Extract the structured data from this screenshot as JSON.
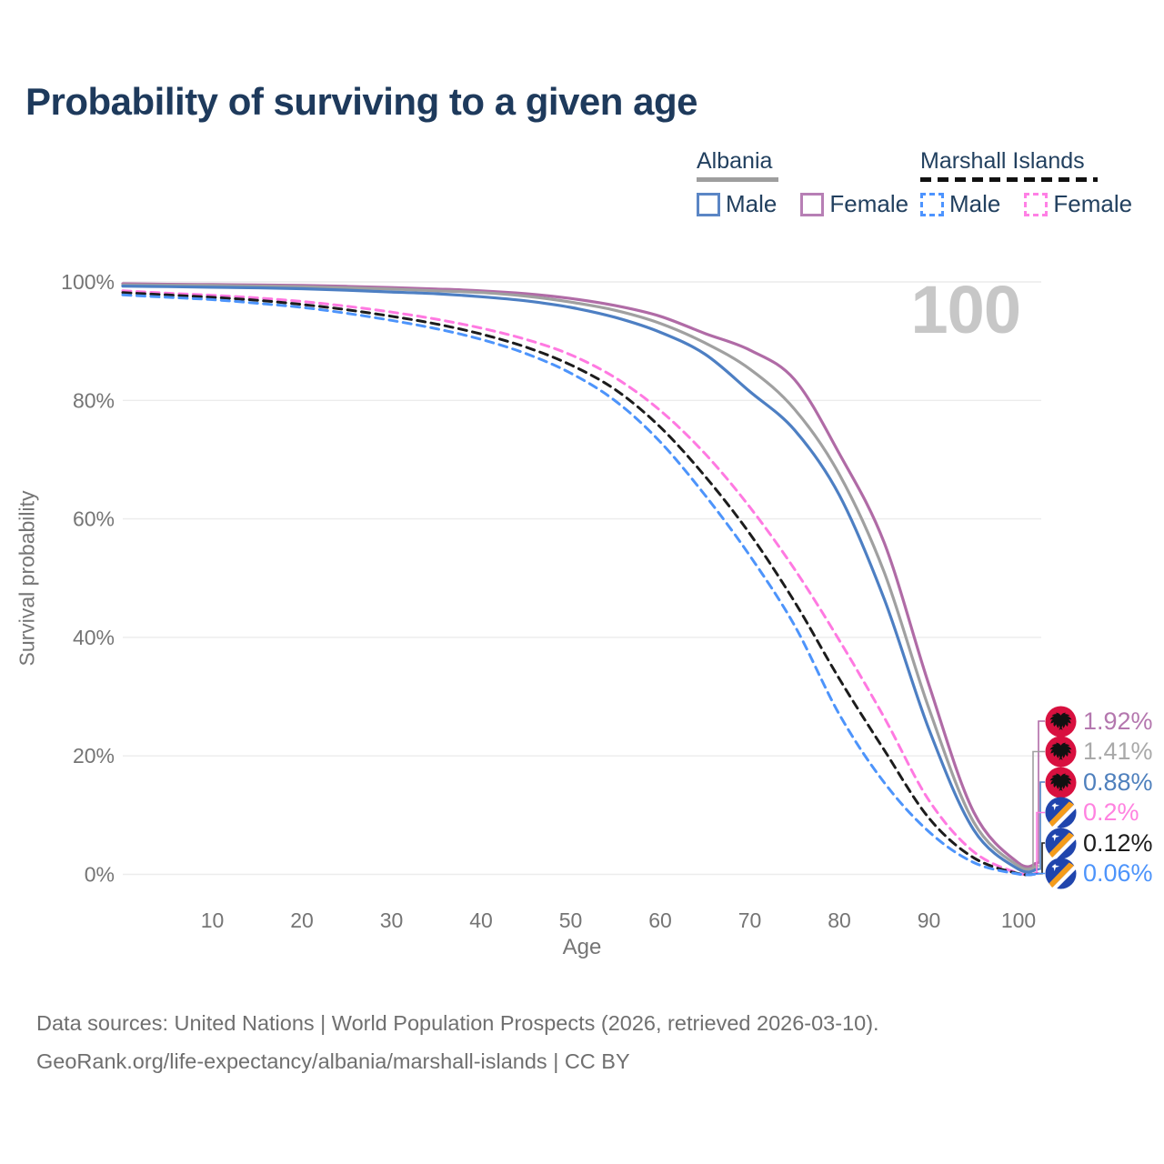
{
  "page": {
    "title": "Probability of surviving to a given age"
  },
  "legend": {
    "groups": [
      {
        "label": "Albania",
        "underline": "solid",
        "items": [
          {
            "label": "Male"
          },
          {
            "label": "Female"
          }
        ]
      },
      {
        "label": "Marshall Islands",
        "underline": "dashed",
        "items": [
          {
            "label": "Male"
          },
          {
            "label": "Female"
          }
        ]
      }
    ]
  },
  "chart_data": {
    "type": "line",
    "title": "Probability of surviving to a given age",
    "xlabel": "Age",
    "ylabel": "Survival probability",
    "watermark": "100",
    "xlim": [
      0,
      100
    ],
    "ylim": [
      0,
      100
    ],
    "grid": "horizontal",
    "x_ticks": [
      10,
      20,
      30,
      40,
      50,
      60,
      70,
      80,
      90,
      100
    ],
    "y_ticks": [
      0,
      20,
      40,
      60,
      80,
      100
    ],
    "y_tick_labels": [
      "0%",
      "20%",
      "40%",
      "60%",
      "80%",
      "100%"
    ],
    "x": [
      0,
      5,
      10,
      15,
      20,
      25,
      30,
      35,
      40,
      45,
      50,
      55,
      60,
      65,
      70,
      75,
      80,
      85,
      90,
      95,
      100
    ],
    "series": [
      {
        "name": "Albania Female",
        "country": "Albania",
        "sex": "Female",
        "flag": "albania",
        "color": "#b06ba6",
        "label_color": "#b477ae",
        "dashed": false,
        "end_label": "1.92%",
        "values": [
          99.7,
          99.6,
          99.55,
          99.5,
          99.4,
          99.25,
          99.05,
          98.8,
          98.5,
          98.0,
          97.2,
          96.0,
          94.2,
          91.3,
          88.5,
          83.5,
          71.0,
          56.0,
          32.0,
          10.5,
          1.92
        ]
      },
      {
        "name": "Albania Total",
        "country": "Albania",
        "sex": "Both sexes",
        "flag": "albania",
        "color": "#a0a0a0",
        "label_color": "#a9a9a9",
        "dashed": false,
        "end_label": "1.41%",
        "values": [
          99.5,
          99.45,
          99.4,
          99.3,
          99.2,
          99.0,
          98.8,
          98.5,
          98.2,
          97.6,
          96.6,
          95.2,
          93.0,
          89.7,
          85.3,
          78.5,
          67.5,
          51.0,
          28.0,
          8.8,
          1.41
        ]
      },
      {
        "name": "Albania Male",
        "country": "Albania",
        "sex": "Male",
        "flag": "albania",
        "color": "#4d7fc3",
        "label_color": "#4f80bd",
        "dashed": false,
        "end_label": "0.88%",
        "values": [
          99.3,
          99.2,
          99.1,
          99.0,
          98.85,
          98.6,
          98.3,
          98.0,
          97.5,
          96.8,
          95.7,
          94.0,
          91.5,
          87.8,
          81.5,
          75.0,
          64.0,
          46.5,
          24.5,
          7.5,
          0.88
        ]
      },
      {
        "name": "Marshall Islands Female",
        "country": "Marshall Islands",
        "sex": "Female",
        "flag": "marshall",
        "color": "#ff79e1",
        "label_color": "#ff82e0",
        "dashed": true,
        "end_label": "0.2%",
        "values": [
          98.5,
          98.1,
          97.75,
          97.3,
          96.7,
          95.9,
          94.9,
          93.7,
          92.2,
          90.3,
          87.7,
          83.8,
          78.3,
          71.0,
          62.0,
          51.5,
          39.5,
          26.5,
          12.5,
          3.8,
          0.2
        ]
      },
      {
        "name": "Marshall Islands Total",
        "country": "Marshall Islands",
        "sex": "Both sexes",
        "flag": "marshall",
        "color": "#1c1c1c",
        "label_color": "#1c1c1c",
        "dashed": true,
        "end_label": "0.12%",
        "values": [
          98.2,
          97.8,
          97.4,
          96.9,
          96.2,
          95.3,
          94.2,
          92.9,
          91.2,
          89.0,
          86.0,
          81.8,
          75.5,
          67.2,
          57.5,
          46.0,
          33.0,
          21.0,
          9.5,
          2.8,
          0.12
        ]
      },
      {
        "name": "Marshall Islands Male",
        "country": "Marshall Islands",
        "sex": "Male",
        "flag": "marshall",
        "color": "#4d94fb",
        "label_color": "#4d94fb",
        "dashed": true,
        "end_label": "0.06%",
        "values": [
          97.8,
          97.4,
          97.0,
          96.4,
          95.7,
          94.7,
          93.5,
          92.1,
          90.3,
          87.9,
          84.6,
          79.9,
          73.0,
          64.0,
          53.8,
          42.0,
          27.0,
          15.5,
          7.2,
          2.0,
          0.06
        ]
      }
    ],
    "flag_colors": {
      "albania_red": "#d8103f",
      "albania_eagle": "#111111",
      "marshall_blue": "#2045ad",
      "marshall_orange": "#f59c1b",
      "marshall_white": "#ffffff"
    }
  },
  "footer": {
    "line1": "Data sources: United Nations | World Population Prospects (2026, retrieved 2026-03-10).",
    "line2": "GeoRank.org/life-expectancy/albania/marshall-islands | CC BY"
  }
}
